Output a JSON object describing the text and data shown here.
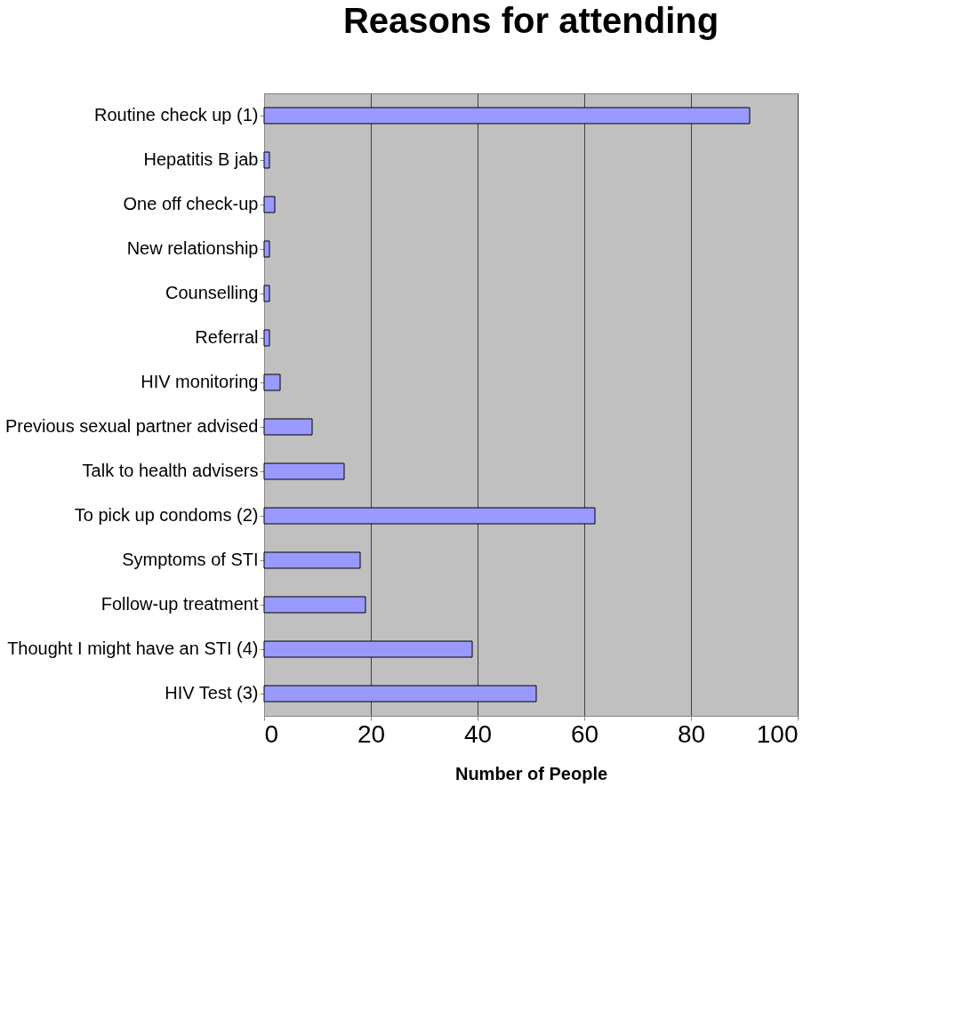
{
  "chart_data": {
    "type": "bar",
    "orientation": "horizontal",
    "title": "Reasons for attending",
    "xlabel": "Number of People",
    "categories": [
      "Routine check up (1)",
      "Hepatitis B jab",
      "One off check-up",
      "New relationship",
      "Counselling",
      "Referral",
      "HIV monitoring",
      "Previous sexual partner advised",
      "Talk to health advisers",
      "To pick up condoms (2)",
      "Symptoms of STI",
      "Follow-up treatment",
      "Thought I might have an STI (4)",
      "HIV Test (3)"
    ],
    "values": [
      91,
      1,
      2,
      1,
      1,
      1,
      3,
      9,
      15,
      62,
      18,
      19,
      39,
      51
    ],
    "color": "#9999ff",
    "xlim": [
      0,
      100
    ],
    "xticks": [
      0,
      20,
      40,
      60,
      80,
      100
    ],
    "grid": "x"
  }
}
